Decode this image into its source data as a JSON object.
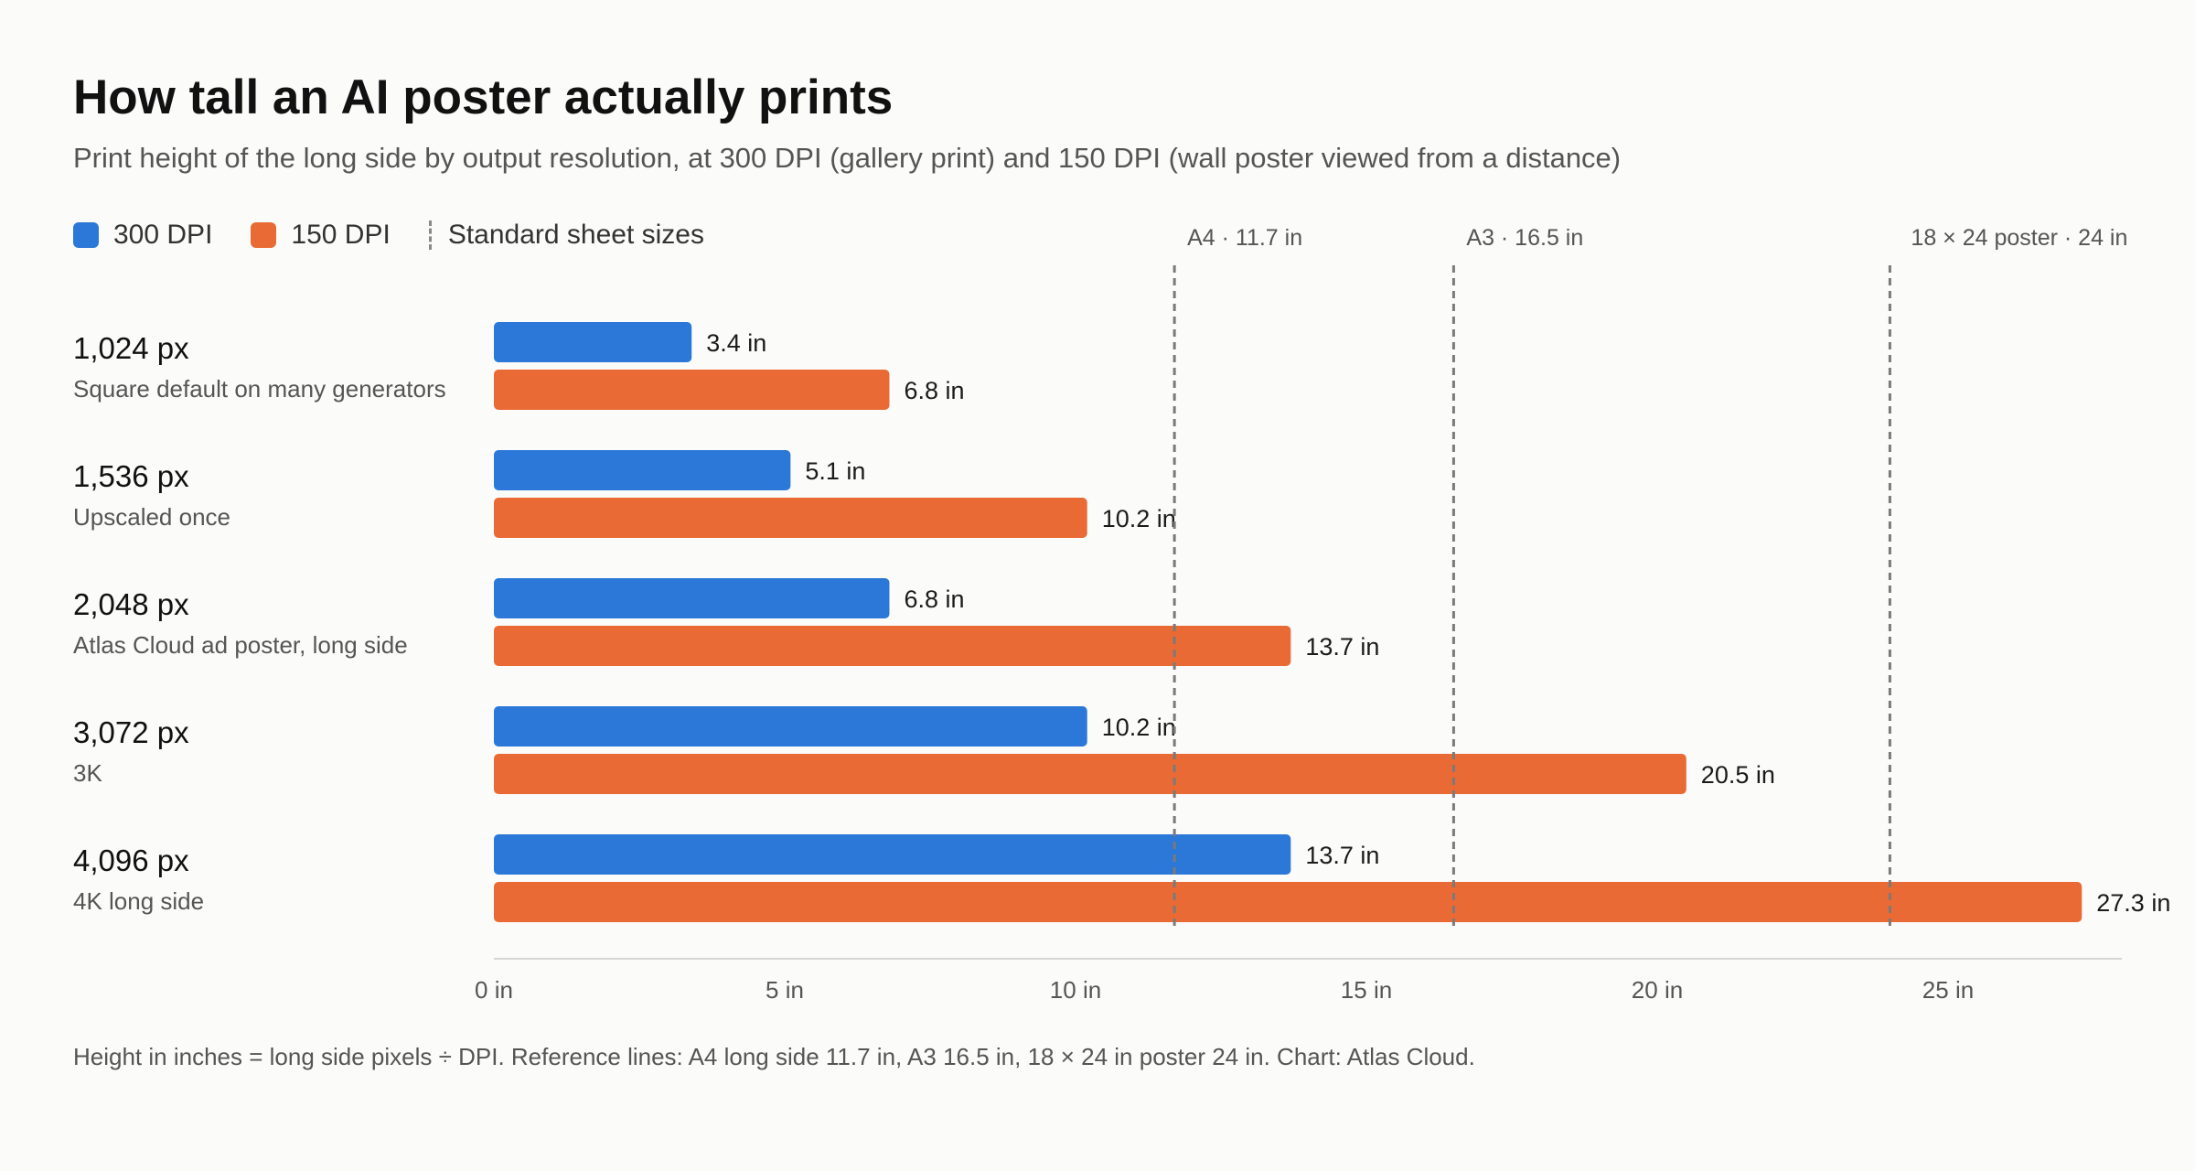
{
  "header": {
    "title": "How tall an AI poster actually prints",
    "subtitle": "Print height of the long side by output resolution, at 300 DPI (gallery print) and 150 DPI (wall poster viewed from a distance)"
  },
  "legend": {
    "series_300": "300 DPI",
    "series_150": "150 DPI",
    "reference": "Standard sheet sizes"
  },
  "rows": [
    {
      "px": "1,024 px",
      "desc": "Square default on many generators"
    },
    {
      "px": "1,536 px",
      "desc": "Upscaled once"
    },
    {
      "px": "2,048 px",
      "desc": "Atlas Cloud ad poster, long side"
    },
    {
      "px": "3,072 px",
      "desc": "3K"
    },
    {
      "px": "4,096 px",
      "desc": "4K long side"
    }
  ],
  "footer": "Height in inches = long side pixels ÷ DPI. Reference lines: A4 long side 11.7 in, A3 16.5 in, 18 × 24 in poster 24 in. Chart: Atlas Cloud.",
  "colors": {
    "dpi300": "#2b78d8",
    "dpi150": "#e96a35",
    "reference_line": "#7a7a7a"
  },
  "chart_data": {
    "type": "bar",
    "orientation": "horizontal",
    "categories": [
      "1,024 px",
      "1,536 px",
      "2,048 px",
      "3,072 px",
      "4,096 px"
    ],
    "series": [
      {
        "name": "300 DPI",
        "values": [
          3.4,
          5.1,
          6.8,
          10.2,
          13.7
        ],
        "labels": [
          "3.4 in",
          "5.1 in",
          "6.8 in",
          "10.2 in",
          "13.7 in"
        ]
      },
      {
        "name": "150 DPI",
        "values": [
          6.8,
          10.2,
          13.7,
          20.5,
          27.3
        ],
        "labels": [
          "6.8 in",
          "10.2 in",
          "13.7 in",
          "20.5 in",
          "27.3 in"
        ]
      }
    ],
    "reference_lines": [
      {
        "value": 11.7,
        "label": "A4 · 11.7 in"
      },
      {
        "value": 16.5,
        "label": "A3 · 16.5 in"
      },
      {
        "value": 24,
        "label": "18 × 24 poster · 24 in"
      }
    ],
    "xticks": [
      0,
      5,
      10,
      15,
      20,
      25
    ],
    "xtick_labels": [
      "0 in",
      "5 in",
      "10 in",
      "15 in",
      "20 in",
      "25 in"
    ],
    "xlim": [
      0,
      28
    ],
    "grid": false,
    "legend_position": "top-left"
  }
}
